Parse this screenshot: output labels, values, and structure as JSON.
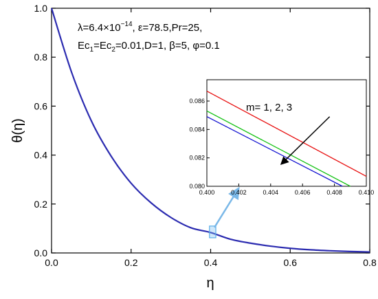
{
  "chart_data": [
    {
      "type": "line",
      "title": "",
      "xlabel": "η",
      "ylabel": "θ(η)",
      "xlim": [
        0,
        0.8
      ],
      "ylim": [
        0,
        1.0
      ],
      "xticks": [
        0.0,
        0.2,
        0.4,
        0.6,
        0.8
      ],
      "yticks": [
        0.0,
        0.2,
        0.4,
        0.6,
        0.8,
        1.0
      ],
      "xtick_labels": [
        "0.0",
        "0.2",
        "0.4",
        "0.6",
        "0.8"
      ],
      "ytick_labels": [
        "0.0",
        "0.2",
        "0.4",
        "0.6",
        "0.8",
        "1.0"
      ],
      "grid": false,
      "annotation": {
        "line1": "λ=6.4×10",
        "line1_exp": "−14",
        "line1_rest": ", ε=78.5,Pr=25,",
        "line2_a": "Ec",
        "line2_sub1": "1",
        "line2_b": "=Ec",
        "line2_sub2": "2",
        "line2_c": "=0.01,D=1, β=5, φ=0.1"
      },
      "series": [
        {
          "color": "#2b2bb0",
          "x": [
            0.0,
            0.05,
            0.1,
            0.15,
            0.2,
            0.25,
            0.3,
            0.35,
            0.4,
            0.45,
            0.5,
            0.55,
            0.6,
            0.65,
            0.7,
            0.75,
            0.8
          ],
          "y": [
            1.0,
            0.74,
            0.54,
            0.395,
            0.285,
            0.205,
            0.145,
            0.103,
            0.0835,
            0.056,
            0.04,
            0.028,
            0.019,
            0.013,
            0.009,
            0.006,
            0.004
          ]
        }
      ],
      "highlight_box": {
        "x": [
          0.397,
          0.413
        ],
        "y": [
          0.062,
          0.11
        ]
      }
    },
    {
      "type": "line",
      "title": "",
      "xlim": [
        0.4,
        0.41
      ],
      "ylim": [
        0.08,
        0.0875
      ],
      "xticks": [
        0.4,
        0.402,
        0.404,
        0.406,
        0.408,
        0.41
      ],
      "yticks": [
        0.08,
        0.082,
        0.084,
        0.086
      ],
      "xtick_labels": [
        "0.400",
        "0.402",
        "0.404",
        "0.406",
        "0.408",
        "0.410"
      ],
      "ytick_labels": [
        "0.080",
        "0.082",
        "0.084",
        "0.086"
      ],
      "annotation": "m= 1, 2, 3",
      "series": [
        {
          "color": "#e81010",
          "x": [
            0.4,
            0.41
          ],
          "y": [
            0.0867,
            0.0807
          ]
        },
        {
          "color": "#10c010",
          "x": [
            0.4,
            0.409
          ],
          "y": [
            0.0853,
            0.08
          ]
        },
        {
          "color": "#1010d0",
          "x": [
            0.4,
            0.4085
          ],
          "y": [
            0.0849,
            0.08
          ]
        }
      ],
      "arrow": {
        "from": [
          0.4077,
          0.0849
        ],
        "to": [
          0.4047,
          0.0816
        ]
      }
    }
  ]
}
